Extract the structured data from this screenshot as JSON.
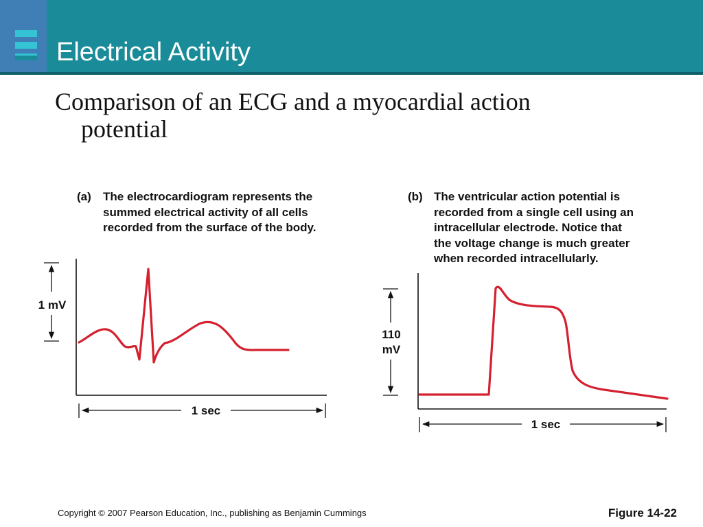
{
  "slide": {
    "title": "Electrical Activity",
    "subtitle_line1": "Comparison of an ECG and a myocardial action",
    "subtitle_line2": "potential",
    "colors": {
      "header": "#1a8c99",
      "logo_block": "#3f7fb6",
      "logo_bars": "#35c4d6",
      "trace": "#d4202f"
    }
  },
  "figure_a": {
    "label": "(a)",
    "caption": [
      "The electrocardiogram represents the",
      "summed electrical activity of all cells",
      "recorded from the surface of the body."
    ],
    "y_scale_label": "1 mV",
    "x_scale_label": "1 sec"
  },
  "figure_b": {
    "label": "(b)",
    "caption": [
      "The ventricular action potential is",
      "recorded from a single cell using an",
      "intracellular electrode. Notice that",
      "the voltage change is much greater",
      "when recorded intracellularly."
    ],
    "y_scale_label_line1": "110",
    "y_scale_label_line2": "mV",
    "x_scale_label": "1 sec"
  },
  "footer": {
    "copyright": "Copyright © 2007 Pearson Education, Inc., publishing as Benjamin Cummings",
    "figure_number": "Figure 14-22"
  }
}
